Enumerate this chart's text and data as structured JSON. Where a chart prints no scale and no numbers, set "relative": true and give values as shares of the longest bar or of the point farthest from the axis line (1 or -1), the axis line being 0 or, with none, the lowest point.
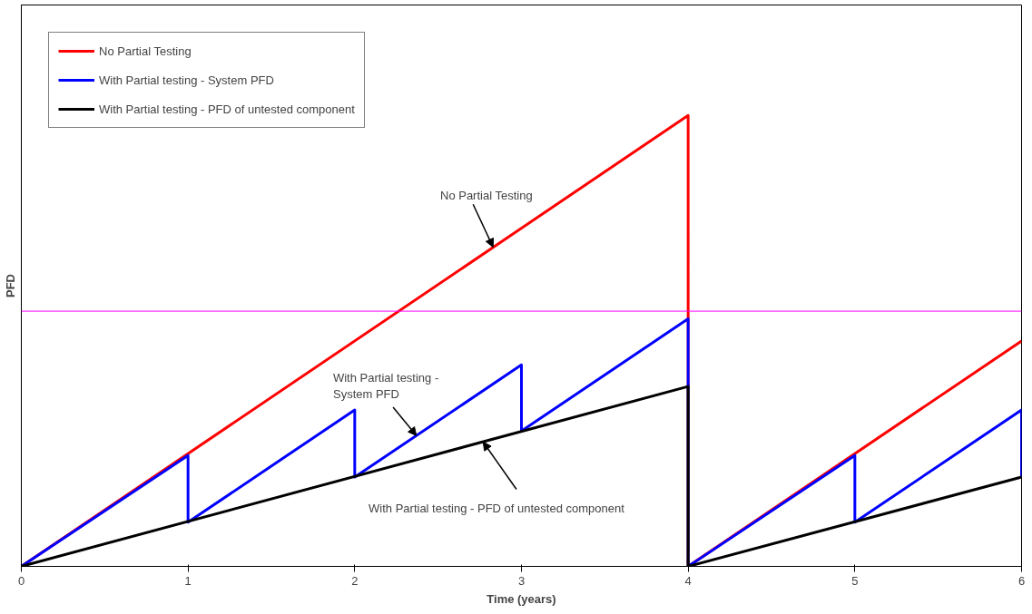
{
  "chart_data": {
    "type": "line",
    "relative": true,
    "xlabel": "Time (years)",
    "ylabel": "PFD",
    "xlim": [
      0,
      6
    ],
    "xticks": [
      0,
      1,
      2,
      3,
      4,
      5,
      6
    ],
    "grid": false,
    "legend": "top left",
    "line_style": "solid",
    "marker": "none",
    "series": [
      {
        "name": "No Partial Testing",
        "color": "#ff0000",
        "x": [
          0,
          4,
          4,
          6
        ],
        "values": [
          0,
          1,
          0,
          0.5
        ]
      },
      {
        "name": "With Partial testing - System PFD",
        "color": "#0000ff",
        "x": [
          0,
          1,
          1,
          2,
          2,
          3,
          3,
          4,
          4,
          5,
          5,
          6,
          6
        ],
        "values": [
          0,
          0.246,
          0.098,
          0.347,
          0.198,
          0.447,
          0.3,
          0.549,
          0,
          0.246,
          0.098,
          0.347,
          0.198
        ]
      },
      {
        "name": "With Partial testing - PFD of untested component",
        "color": "#000000",
        "x": [
          0,
          4,
          4,
          6
        ],
        "values": [
          0,
          0.399,
          0,
          0.198
        ]
      }
    ],
    "ref_lines": [
      {
        "axis": "y",
        "value": 0.566,
        "color": "#ff00ff"
      }
    ],
    "annotations": [
      {
        "text": "No Partial Testing",
        "x": 2.83,
        "y": 0.708
      },
      {
        "text": "With Partial testing - System PFD",
        "x": 2.37,
        "y": 0.29
      },
      {
        "text": "With Partial testing - PFD of untested component",
        "x": 2.77,
        "y": 0.276
      }
    ]
  }
}
